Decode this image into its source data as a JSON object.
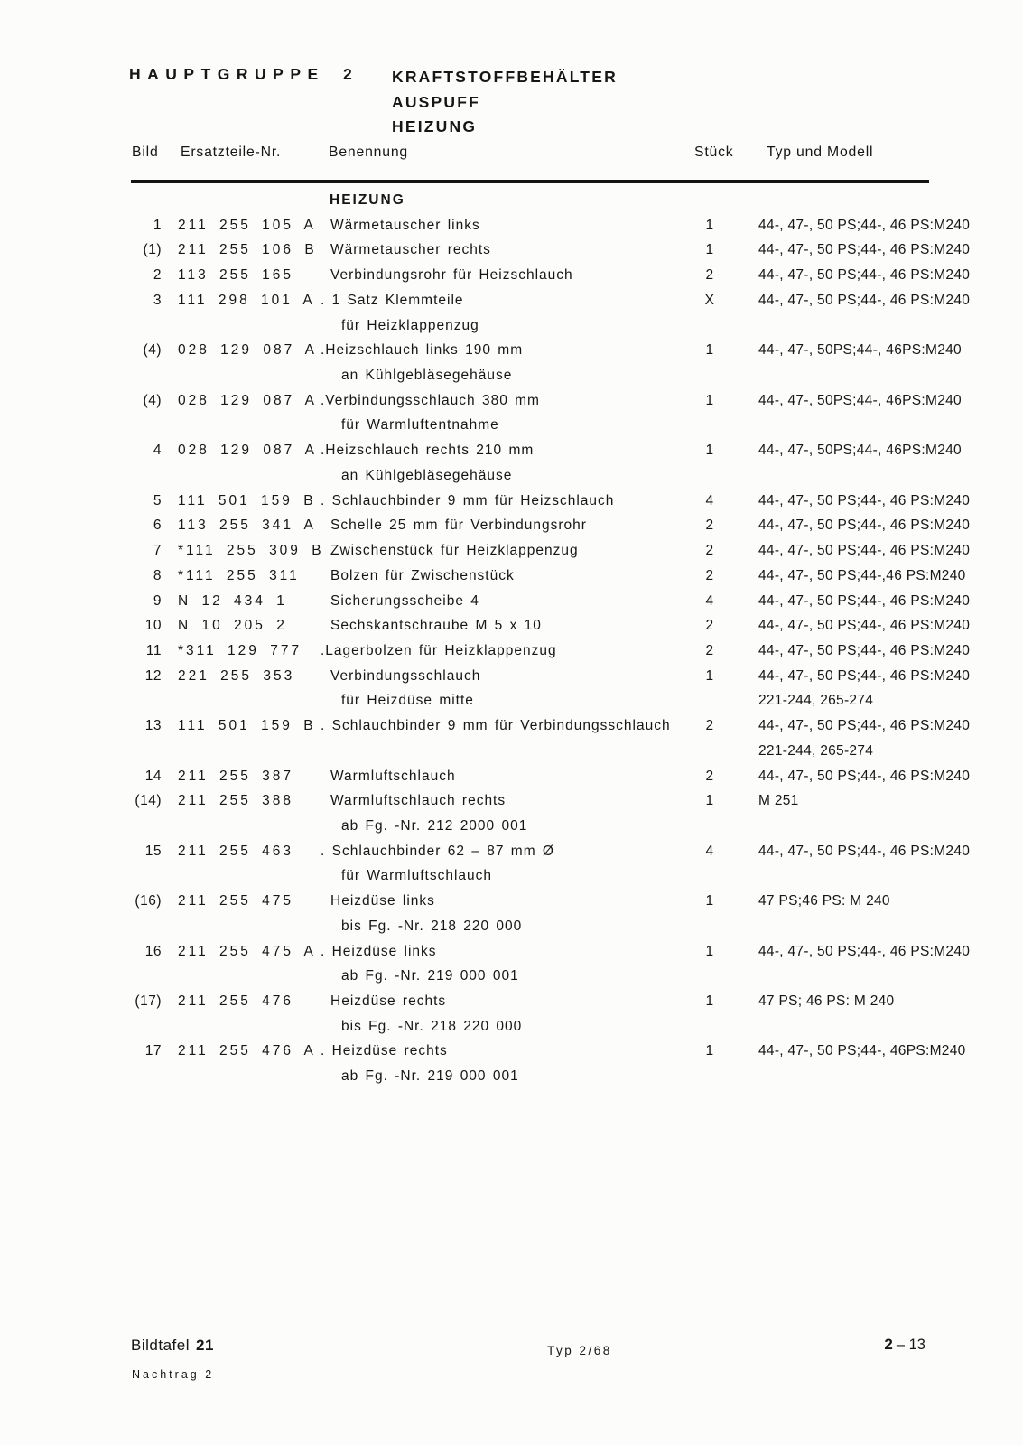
{
  "page": {
    "background": "#fcfcfa",
    "ink": "#161616"
  },
  "header": {
    "group_label": "HAUPTGRUPPE 2",
    "titles": [
      "KRAFTSTOFFBEHÄLTER",
      "AUSPUFF",
      "HEIZUNG"
    ],
    "columns": {
      "bild": "Bild",
      "nr": "Ersatzteile-Nr.",
      "benennung": "Benennung",
      "stueck": "Stück",
      "typ": "Typ und Modell"
    }
  },
  "table": {
    "section_title": "HEIZUNG",
    "rows": [
      {
        "bild": "1",
        "nr": "211 255 105 A",
        "benennung": [
          "Wärmetauscher links"
        ],
        "stueck": "1",
        "typ": [
          "44-, 47-, 50 PS;44-, 46 PS:M240"
        ]
      },
      {
        "bild": "(1)",
        "nr": "211 255 106 B",
        "benennung": [
          "Wärmetauscher rechts"
        ],
        "stueck": "1",
        "typ": [
          "44-, 47-, 50 PS;44-, 46 PS:M240"
        ]
      },
      {
        "bild": "2",
        "nr": "113 255 165",
        "benennung": [
          "Verbindungsrohr für Heizschlauch"
        ],
        "stueck": "2",
        "typ": [
          "44-, 47-, 50 PS;44-, 46 PS:M240"
        ]
      },
      {
        "bild": "3",
        "nr": "111 298 101 A",
        "benennung": [
          ". 1 Satz Klemmteile",
          "für Heizklappenzug"
        ],
        "stueck": "X",
        "typ": [
          "44-, 47-, 50 PS;44-, 46 PS:M240"
        ]
      },
      {
        "bild": "(4)",
        "nr": "028 129 087 A",
        "benennung": [
          ".Heizschlauch links 190 mm",
          "an Kühlgebläsegehäuse"
        ],
        "stueck": "1",
        "typ": [
          "44-, 47-, 50PS;44-, 46PS:M240"
        ]
      },
      {
        "bild": "(4)",
        "nr": "028 129 087 A",
        "benennung": [
          ".Verbindungsschlauch 380 mm",
          "für Warmluftentnahme"
        ],
        "stueck": "1",
        "typ": [
          "44-, 47-, 50PS;44-, 46PS:M240"
        ]
      },
      {
        "bild": "4",
        "nr": "028 129 087 A",
        "benennung": [
          ".Heizschlauch rechts 210 mm",
          "an Kühlgebläsegehäuse"
        ],
        "stueck": "1",
        "typ": [
          "44-, 47-, 50PS;44-, 46PS:M240"
        ]
      },
      {
        "bild": "5",
        "nr": "111 501 159 B",
        "benennung": [
          ". Schlauchbinder 9 mm für Heizschlauch"
        ],
        "stueck": "4",
        "typ": [
          "44-, 47-, 50 PS;44-, 46 PS:M240"
        ]
      },
      {
        "bild": "6",
        "nr": "113 255 341 A",
        "benennung": [
          "Schelle 25 mm für Verbindungsrohr"
        ],
        "stueck": "2",
        "typ": [
          "44-, 47-, 50 PS;44-, 46 PS:M240"
        ]
      },
      {
        "bild": "7",
        "nr": "*111 255 309 B",
        "benennung": [
          "Zwischenstück für Heizklappenzug"
        ],
        "stueck": "2",
        "typ": [
          "44-, 47-, 50 PS;44-, 46 PS:M240"
        ]
      },
      {
        "bild": "8",
        "nr": "*111 255 311",
        "benennung": [
          "Bolzen für Zwischenstück"
        ],
        "stueck": "2",
        "typ": [
          "44-, 47-, 50 PS;44-,46 PS:M240"
        ]
      },
      {
        "bild": "9",
        "nr": "N 12 434 1",
        "benennung": [
          "Sicherungsscheibe 4"
        ],
        "stueck": "4",
        "typ": [
          "44-, 47-, 50 PS;44-, 46 PS:M240"
        ]
      },
      {
        "bild": "10",
        "nr": "N 10 205 2",
        "benennung": [
          "Sechskantschraube M 5 x 10"
        ],
        "stueck": "2",
        "typ": [
          "44-, 47-, 50 PS;44-, 46 PS:M240"
        ]
      },
      {
        "bild": "11",
        "nr": "*311 129 777",
        "benennung": [
          ".Lagerbolzen für Heizklappenzug"
        ],
        "stueck": "2",
        "typ": [
          "44-, 47-, 50 PS;44-, 46 PS:M240"
        ]
      },
      {
        "bild": "12",
        "nr": "221 255 353",
        "benennung": [
          "Verbindungsschlauch",
          "für Heizdüse mitte"
        ],
        "stueck": "1",
        "typ": [
          "44-, 47-, 50 PS;44-, 46 PS:M240",
          "221-244, 265-274"
        ]
      },
      {
        "bild": "13",
        "nr": "111 501 159 B",
        "benennung": [
          ". Schlauchbinder 9 mm für Verbindungsschlauch"
        ],
        "stueck": "2",
        "typ": [
          "44-, 47-, 50 PS;44-, 46 PS:M240",
          "221-244, 265-274"
        ]
      },
      {
        "bild": "14",
        "nr": "211 255 387",
        "benennung": [
          "Warmluftschlauch"
        ],
        "stueck": "2",
        "typ": [
          "44-, 47-, 50 PS;44-, 46 PS:M240"
        ]
      },
      {
        "bild": "(14)",
        "nr": "211 255 388",
        "benennung": [
          "Warmluftschlauch rechts",
          "ab Fg. -Nr. 212 2000 001"
        ],
        "stueck": "1",
        "typ": [
          "M 251"
        ]
      },
      {
        "bild": "15",
        "nr": "211 255 463",
        "benennung": [
          ". Schlauchbinder 62 – 87 mm Ø",
          "für Warmluftschlauch"
        ],
        "stueck": "4",
        "typ": [
          "44-, 47-, 50 PS;44-, 46 PS:M240"
        ]
      },
      {
        "bild": "(16)",
        "nr": "211 255 475",
        "benennung": [
          "Heizdüse links",
          "bis Fg. -Nr. 218 220 000"
        ],
        "stueck": "1",
        "typ": [
          "47 PS;46 PS: M 240"
        ]
      },
      {
        "bild": "16",
        "nr": "211 255 475 A",
        "benennung": [
          ". Heizdüse links",
          "ab Fg. -Nr. 219 000 001"
        ],
        "stueck": "1",
        "typ": [
          "44-, 47-, 50 PS;44-, 46 PS:M240"
        ]
      },
      {
        "bild": "(17)",
        "nr": "211 255 476",
        "benennung": [
          "Heizdüse rechts",
          "bis Fg. -Nr. 218 220 000"
        ],
        "stueck": "1",
        "typ": [
          "47 PS; 46 PS: M 240"
        ]
      },
      {
        "bild": "17",
        "nr": "211 255 476 A",
        "benennung": [
          ". Heizdüse rechts",
          "ab Fg. -Nr. 219 000 001"
        ],
        "stueck": "1",
        "typ": [
          "44-, 47-, 50 PS;44-, 46PS:M240"
        ]
      }
    ]
  },
  "footer": {
    "plate_label": "Bildtafel",
    "plate_number": "21",
    "supplement": "Nachtrag 2",
    "type_note": "Typ 2/68",
    "page_group": "2",
    "page_rest": "– 13"
  }
}
